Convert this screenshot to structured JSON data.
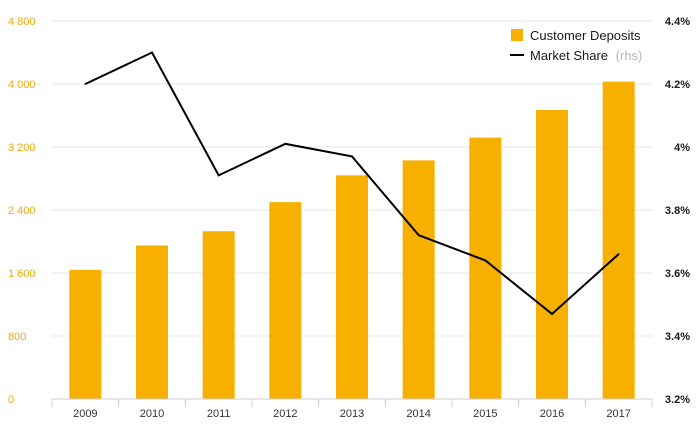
{
  "chart_data": {
    "type": "bar+line",
    "categories": [
      "2009",
      "2010",
      "2011",
      "2012",
      "2013",
      "2014",
      "2015",
      "2016",
      "2017"
    ],
    "series": [
      {
        "name": "Customer Deposits",
        "type": "bar",
        "axis": "left",
        "color": "#f7b000",
        "values": [
          1640,
          1950,
          2130,
          2500,
          2840,
          3030,
          3320,
          3670,
          4030
        ]
      },
      {
        "name": "Market Share",
        "name_note": "(rhs)",
        "type": "line",
        "axis": "right",
        "color": "#000000",
        "values": [
          4.2,
          4.3,
          3.91,
          4.01,
          3.97,
          3.72,
          3.64,
          3.47,
          3.66
        ]
      }
    ],
    "left_axis": {
      "ylim": [
        0,
        4800
      ],
      "ticks": [
        0,
        800,
        1600,
        2400,
        3200,
        4000,
        4800
      ],
      "tick_labels": [
        "0",
        "800",
        "1 600",
        "2 400",
        "3 200",
        "4 000",
        "4 800"
      ],
      "color": "#f5a800"
    },
    "right_axis": {
      "ylim": [
        3.2,
        4.4
      ],
      "ticks": [
        3.2,
        3.4,
        3.6,
        3.8,
        4.0,
        4.2,
        4.4
      ],
      "tick_labels": [
        "3.2%",
        "3.4%",
        "3.6%",
        "3.8%",
        "4%",
        "4.2%",
        "4.4%"
      ],
      "color": "#1a1a1a"
    },
    "grid": true,
    "legend_position": "top-right"
  }
}
